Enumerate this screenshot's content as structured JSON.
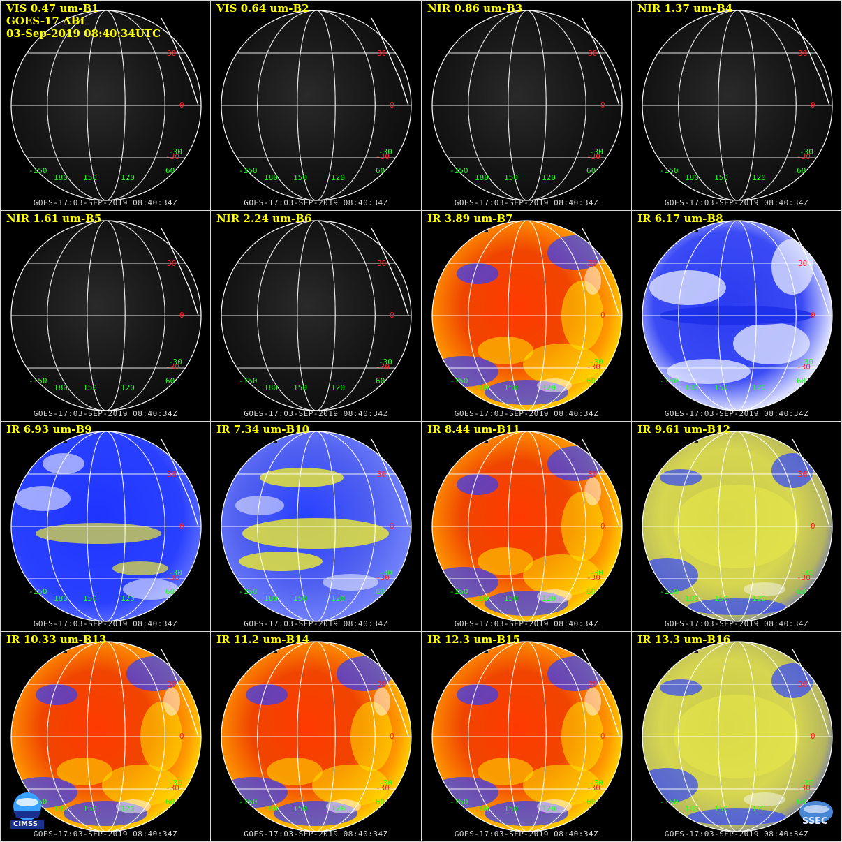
{
  "header": {
    "satellite": "GOES-17 ABI",
    "datetime": "03-Sep-2019 08:40:34UTC"
  },
  "footer_label": "GOES-17:03-SEP-2019 08:40:34Z",
  "grid_labels": {
    "lat_n30": "30",
    "lat_0": "0",
    "lat_s30": "-30",
    "lat_s30_green": "-30",
    "lon_w150": "-150",
    "lon_180": "180",
    "lon_150": "150",
    "lon_120": "120",
    "lon_60": "60"
  },
  "colors": {
    "title": "#ffff00",
    "grid": "#ffffff",
    "lat_label": "#ff2020",
    "lon_label": "#20ff20",
    "border": "#d8d8d8"
  },
  "panels": [
    {
      "title": "VIS 0.47 um-B1",
      "palette": "vis"
    },
    {
      "title": "VIS 0.64 um-B2",
      "palette": "vis"
    },
    {
      "title": "NIR 0.86 um-B3",
      "palette": "vis"
    },
    {
      "title": "NIR 1.37 um-B4",
      "palette": "vis"
    },
    {
      "title": "NIR 1.61 um-B5",
      "palette": "vis"
    },
    {
      "title": "NIR 2.24 um-B6",
      "palette": "vis"
    },
    {
      "title": "IR 3.89 um-B7",
      "palette": "ir_red"
    },
    {
      "title": "IR 6.17 um-B8",
      "palette": "wv_white"
    },
    {
      "title": "IR 6.93 um-B9",
      "palette": "wv_blue"
    },
    {
      "title": "IR 7.34 um-B10",
      "palette": "wv_yellow"
    },
    {
      "title": "IR 8.44 um-B11",
      "palette": "ir_red"
    },
    {
      "title": "IR 9.61 um-B12",
      "palette": "ir_yellow"
    },
    {
      "title": "IR 10.33 um-B13",
      "palette": "ir_red"
    },
    {
      "title": "IR 11.2 um-B14",
      "palette": "ir_red"
    },
    {
      "title": "IR 12.3 um-B15",
      "palette": "ir_red"
    },
    {
      "title": "IR 13.3 um-B16",
      "palette": "ir_yellow"
    }
  ],
  "logos": {
    "left": "CIMSS",
    "right": "SSEC"
  }
}
